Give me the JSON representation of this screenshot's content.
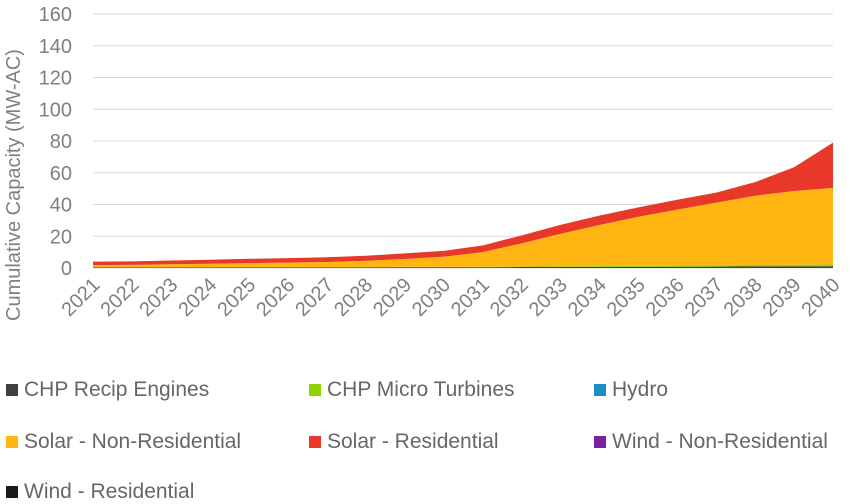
{
  "chart_data": {
    "type": "area",
    "stacked": true,
    "title": "",
    "xlabel": "",
    "ylabel": "Cumulative Capacity (MW-AC)",
    "ylim": [
      0,
      160
    ],
    "yticks": [
      0,
      20,
      40,
      60,
      80,
      100,
      120,
      140,
      160
    ],
    "grid": true,
    "legend_position": "bottom",
    "x": [
      "2021",
      "2022",
      "2023",
      "2024",
      "2025",
      "2026",
      "2027",
      "2028",
      "2029",
      "2030",
      "2031",
      "2032",
      "2033",
      "2034",
      "2035",
      "2036",
      "2037",
      "2038",
      "2039",
      "2040"
    ],
    "series": [
      {
        "name": "CHP Recip Engines",
        "color": "#404040",
        "values": [
          0.3,
          0.3,
          0.3,
          0.3,
          0.4,
          0.4,
          0.4,
          0.4,
          0.5,
          0.5,
          0.5,
          0.6,
          0.6,
          0.7,
          0.8,
          0.8,
          0.9,
          1.0,
          1.0,
          1.1
        ]
      },
      {
        "name": "CHP Micro Turbines",
        "color": "#8fd400",
        "values": [
          0.1,
          0.1,
          0.1,
          0.1,
          0.1,
          0.1,
          0.2,
          0.2,
          0.2,
          0.2,
          0.3,
          0.3,
          0.4,
          0.5,
          0.6,
          0.7,
          0.8,
          0.9,
          1.0,
          1.1
        ]
      },
      {
        "name": "Hydro",
        "color": "#1b8fc7",
        "values": [
          0,
          0,
          0,
          0,
          0,
          0,
          0,
          0,
          0,
          0,
          0,
          0,
          0,
          0,
          0,
          0,
          0,
          0,
          0,
          0
        ]
      },
      {
        "name": "Solar - Non-Residential",
        "color": "#ffb612",
        "values": [
          1.4,
          1.6,
          2.0,
          2.3,
          2.6,
          2.9,
          3.2,
          3.9,
          5.0,
          6.4,
          9.2,
          14.6,
          20.5,
          25.9,
          30.9,
          35.3,
          39.5,
          43.6,
          46.5,
          48.3
        ]
      },
      {
        "name": "Solar - Residential",
        "color": "#e8382a",
        "values": [
          2.2,
          2.2,
          2.3,
          2.5,
          2.7,
          2.8,
          3.0,
          3.2,
          3.5,
          3.7,
          4.2,
          5.0,
          5.7,
          5.9,
          5.9,
          6.2,
          6.3,
          8.6,
          15.0,
          28.5
        ]
      },
      {
        "name": "Wind - Non-Residential",
        "color": "#7a1fa2",
        "values": [
          0,
          0,
          0,
          0,
          0,
          0,
          0,
          0,
          0,
          0,
          0,
          0,
          0,
          0,
          0,
          0,
          0,
          0,
          0,
          0
        ]
      },
      {
        "name": "Wind - Residential",
        "color": "#1a1a1a",
        "values": [
          0,
          0,
          0,
          0,
          0,
          0,
          0,
          0,
          0,
          0,
          0,
          0,
          0,
          0,
          0,
          0,
          0,
          0,
          0,
          0
        ]
      }
    ]
  }
}
